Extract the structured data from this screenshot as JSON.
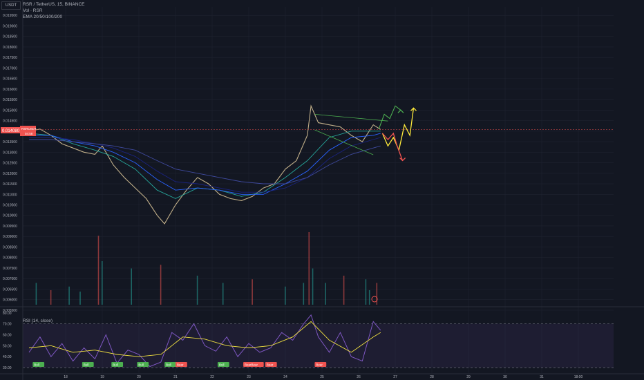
{
  "header": {
    "currency_button": "USDT",
    "symbol_line": "RSR / TetherUS, 15, BINANCE",
    "vol_label": "Vol · RSR",
    "ema_label": "EMA 20/50/100/200"
  },
  "price_tag": {
    "symbol": "RSRUSDT",
    "price": "0.014080",
    "countdown": "04:58"
  },
  "rsi_panel": {
    "label": "RSI (14, close)"
  },
  "colors": {
    "background": "#131722",
    "grid": "#1f2330",
    "axis_text": "#b2b5be",
    "candle_up": "#26a69a",
    "candle_down": "#ef5350",
    "ema20": "#c2b08a",
    "ema50": "#26a69a",
    "ema100": "#2962ff",
    "ema200": "#1a237e",
    "rsi_line": "#7e57c2",
    "rsi_ma": "#f0e040",
    "trend_green": "#4caf50",
    "arrow_yellow": "#ffeb3b",
    "arrow_red": "#ef5350",
    "bull_badge": "#4caf50",
    "bear_badge": "#ef5350"
  },
  "chart_data": [
    {
      "type": "line",
      "title": "RSR / TetherUS, 15, BINANCE",
      "x_ticks": [
        "18",
        "19",
        "20",
        "21",
        "22",
        "23",
        "24",
        "25",
        "26",
        "27",
        "28",
        "29",
        "30",
        "31",
        "18:00"
      ],
      "y_ticks": [
        "0.019500",
        "0.019000",
        "0.018500",
        "0.018000",
        "0.017500",
        "0.017000",
        "0.016500",
        "0.016000",
        "0.015500",
        "0.015000",
        "0.014500",
        "0.014000",
        "0.013500",
        "0.013000",
        "0.012500",
        "0.012000",
        "0.011500",
        "0.011000",
        "0.010500",
        "0.010000",
        "0.009500",
        "0.009000",
        "0.008500",
        "0.008000",
        "0.007500",
        "0.007000",
        "0.006500",
        "0.006000",
        "0.005500"
      ],
      "ylim": [
        0.0053,
        0.0199
      ],
      "series": [
        {
          "x": [
            17.0,
            17.3,
            17.6,
            17.9,
            18.2,
            18.5,
            18.8,
            19.0,
            19.3,
            19.6,
            19.9,
            20.2,
            20.5,
            20.7,
            21.0,
            21.3,
            21.6,
            21.9,
            22.2,
            22.5,
            22.8,
            23.1,
            23.4,
            23.7,
            24.0,
            24.3,
            24.6,
            24.7,
            24.9,
            25.2,
            25.5,
            25.8,
            26.1,
            26.4,
            26.6
          ],
          "values": [
            0.014,
            0.0141,
            0.0138,
            0.0134,
            0.0132,
            0.013,
            0.0129,
            0.0133,
            0.0124,
            0.0118,
            0.0113,
            0.0108,
            0.01,
            0.0096,
            0.0105,
            0.0112,
            0.0118,
            0.0115,
            0.011,
            0.0108,
            0.0107,
            0.0109,
            0.0113,
            0.0115,
            0.0122,
            0.0126,
            0.0138,
            0.0152,
            0.0144,
            0.0143,
            0.0142,
            0.0138,
            0.0135,
            0.0143,
            0.01408
          ]
        },
        {
          "x": [
            17.0,
            17.6,
            18.2,
            18.8,
            19.3,
            19.9,
            20.5,
            21.0,
            21.6,
            22.2,
            22.8,
            23.4,
            24.0,
            24.6,
            25.2,
            25.8,
            26.4,
            26.6
          ],
          "values": [
            0.0139,
            0.0138,
            0.0134,
            0.0131,
            0.0128,
            0.0122,
            0.0112,
            0.0108,
            0.0113,
            0.0112,
            0.0109,
            0.0111,
            0.0118,
            0.0126,
            0.0137,
            0.014,
            0.014,
            0.014
          ]
        },
        {
          "x": [
            17.0,
            17.6,
            18.2,
            18.8,
            19.3,
            19.9,
            20.5,
            21.0,
            21.6,
            22.2,
            22.8,
            23.4,
            24.0,
            24.6,
            25.2,
            25.8,
            26.4,
            26.6
          ],
          "values": [
            0.0138,
            0.0138,
            0.0135,
            0.0133,
            0.013,
            0.0125,
            0.0117,
            0.0112,
            0.0113,
            0.0112,
            0.011,
            0.011,
            0.0115,
            0.0121,
            0.0131,
            0.0137,
            0.0138,
            0.0139
          ]
        },
        {
          "x": [
            17.0,
            17.6,
            18.2,
            18.8,
            19.3,
            19.9,
            20.5,
            21.0,
            21.6,
            22.2,
            22.8,
            23.4,
            24.0,
            24.6,
            25.2,
            25.8,
            26.4,
            26.6
          ],
          "values": [
            0.0137,
            0.0137,
            0.0136,
            0.0134,
            0.0132,
            0.0128,
            0.0121,
            0.0116,
            0.0115,
            0.0113,
            0.0111,
            0.0111,
            0.0113,
            0.0118,
            0.0127,
            0.0133,
            0.0136,
            0.0137
          ]
        },
        {
          "x": [
            17.0,
            17.6,
            18.2,
            18.8,
            19.3,
            19.9,
            20.5,
            21.0,
            21.6,
            22.2,
            22.8,
            23.4,
            24.0,
            24.6,
            25.2,
            25.8,
            26.4,
            26.6
          ],
          "values": [
            0.0136,
            0.0136,
            0.0135,
            0.0134,
            0.0133,
            0.0131,
            0.0126,
            0.0122,
            0.012,
            0.0118,
            0.0116,
            0.0115,
            0.0115,
            0.0118,
            0.0124,
            0.0129,
            0.0132,
            0.0133
          ]
        }
      ],
      "annotations": {
        "trend_upper": {
          "x": [
            24.8,
            26.8
          ],
          "values": [
            0.0148,
            0.01448
          ]
        },
        "trend_lower": {
          "x": [
            24.8,
            26.4
          ],
          "values": [
            0.01406,
            0.01288
          ]
        },
        "arrow_green": {
          "x": [
            26.55,
            26.7,
            26.85,
            27.0,
            27.15
          ],
          "values": [
            0.0141,
            0.0148,
            0.0146,
            0.0152,
            0.015
          ]
        },
        "arrow_yellow": {
          "x": [
            26.65,
            26.8,
            26.95,
            27.1,
            27.25,
            27.4,
            27.5
          ],
          "values": [
            0.0139,
            0.0133,
            0.0137,
            0.0131,
            0.0143,
            0.0138,
            0.0151
          ]
        },
        "arrow_red": {
          "x": [
            26.65,
            26.8,
            26.95,
            27.05,
            27.2
          ],
          "values": [
            0.0139,
            0.0136,
            0.0139,
            0.0133,
            0.0126
          ]
        }
      }
    },
    {
      "type": "bar",
      "title": "Vol · RSR",
      "x": [
        17.2,
        17.6,
        18.1,
        18.4,
        18.9,
        19.0,
        19.8,
        20.6,
        21.6,
        22.3,
        23.1,
        24.0,
        24.5,
        24.65,
        24.75,
        25.1,
        25.6,
        26.2,
        26.3,
        26.5
      ],
      "values": [
        0.3,
        0.2,
        0.25,
        0.18,
        0.95,
        0.6,
        0.5,
        0.55,
        0.4,
        0.3,
        0.35,
        0.25,
        0.3,
        1.0,
        0.5,
        0.3,
        0.4,
        0.35,
        0.2,
        0.3
      ]
    },
    {
      "type": "line",
      "title": "RSI (14, close)",
      "y_ticks": [
        "80.00",
        "70.00",
        "60.00",
        "50.00",
        "40.00",
        "30.00"
      ],
      "ylim": [
        25,
        83
      ],
      "series": [
        {
          "x": [
            17.0,
            17.3,
            17.6,
            17.9,
            18.2,
            18.5,
            18.8,
            19.1,
            19.4,
            19.7,
            20.0,
            20.3,
            20.6,
            20.9,
            21.2,
            21.5,
            21.8,
            22.1,
            22.4,
            22.7,
            23.0,
            23.3,
            23.6,
            23.9,
            24.2,
            24.5,
            24.7,
            24.9,
            25.2,
            25.5,
            25.8,
            26.1,
            26.4,
            26.6
          ],
          "values": [
            44,
            58,
            40,
            52,
            36,
            48,
            38,
            60,
            34,
            46,
            42,
            31,
            35,
            62,
            55,
            70,
            50,
            45,
            58,
            40,
            52,
            44,
            48,
            62,
            55,
            70,
            78,
            58,
            44,
            62,
            40,
            36,
            72,
            64
          ]
        },
        {
          "x": [
            17.0,
            17.6,
            18.2,
            18.8,
            19.4,
            20.0,
            20.6,
            21.2,
            21.8,
            22.4,
            23.0,
            23.6,
            24.2,
            24.7,
            25.2,
            25.8,
            26.4,
            26.6
          ],
          "values": [
            48,
            50,
            44,
            46,
            42,
            40,
            42,
            58,
            56,
            50,
            48,
            50,
            58,
            72,
            55,
            44,
            58,
            62
          ]
        }
      ],
      "annotations": {
        "bull_labels": [
          {
            "x": 17.1,
            "text": "Bull"
          },
          {
            "x": 18.45,
            "text": "Bull"
          },
          {
            "x": 19.25,
            "text": "Bull"
          },
          {
            "x": 19.95,
            "text": "Bull"
          },
          {
            "x": 20.7,
            "text": "Bull"
          },
          {
            "x": 22.15,
            "text": "Bull"
          }
        ],
        "bear_labels": [
          {
            "x": 21.0,
            "text": "Bear"
          },
          {
            "x": 22.85,
            "text": "BearBear"
          },
          {
            "x": 23.45,
            "text": "Bear"
          },
          {
            "x": 24.8,
            "text": "Bear"
          }
        ]
      }
    }
  ]
}
